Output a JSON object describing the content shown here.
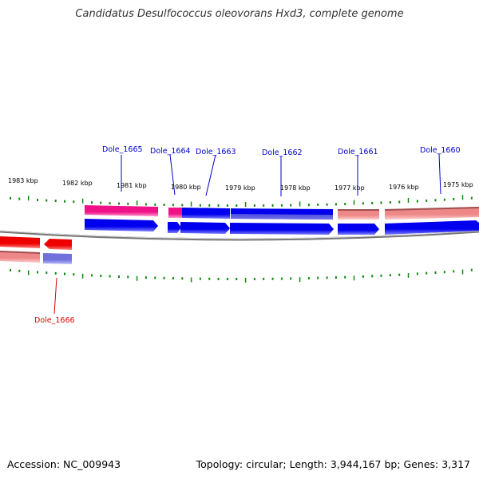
{
  "title": "Candidatus Desulfococcus oleovorans Hxd3, complete genome",
  "accession_text": "Accession: NC_009943",
  "topology_text": "Topology: circular; Length: 3,944,167 bp; Genes: 3,317",
  "colors": {
    "backbone": "#7a7a7a",
    "tick": "#118811",
    "label_forward": "#0000cc",
    "label_reverse": "#dd0000",
    "cds_blue": "#0000ee",
    "cds_red": "#ee0000",
    "rna_magenta": "#ee1188",
    "pseudo_pink": "#ee8888",
    "feature_lavender": "#7070dd",
    "feature_brown": "#a05050"
  },
  "scale": {
    "tick_labels": [
      "1983 kbp",
      "1982 kbp",
      "1981 kbp",
      "1980 kbp",
      "1979 kbp",
      "1978 kbp",
      "1977 kbp",
      "1976 kbp",
      "1975 kbp"
    ]
  },
  "genes": [
    {
      "name": "Dole_1665",
      "strand": "forward"
    },
    {
      "name": "Dole_1664",
      "strand": "forward"
    },
    {
      "name": "Dole_1663",
      "strand": "forward"
    },
    {
      "name": "Dole_1662",
      "strand": "forward"
    },
    {
      "name": "Dole_1661",
      "strand": "forward"
    },
    {
      "name": "Dole_1660",
      "strand": "forward"
    },
    {
      "name": "Dole_1666",
      "strand": "reverse"
    }
  ]
}
